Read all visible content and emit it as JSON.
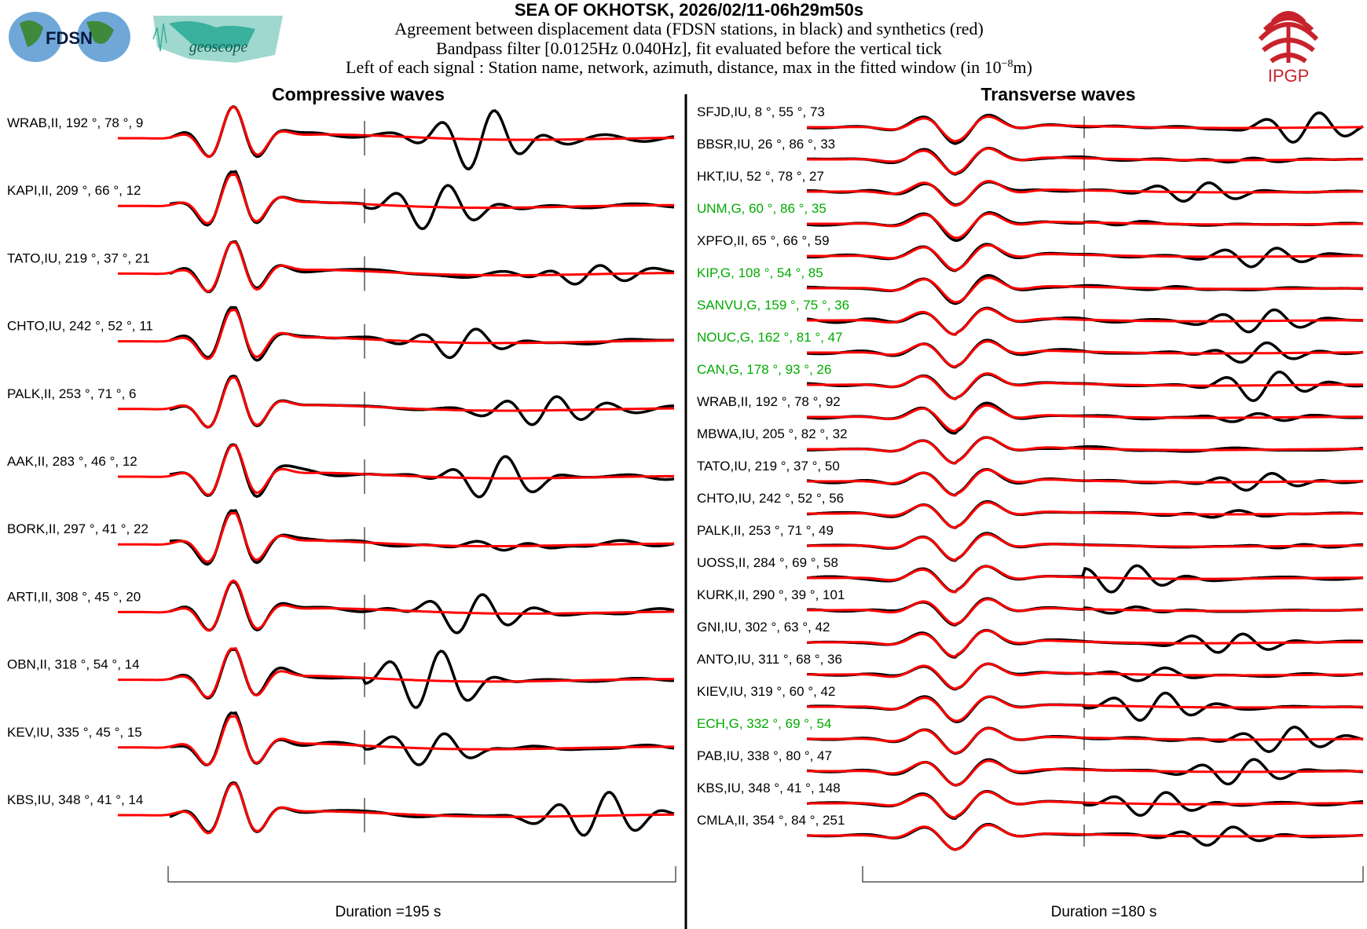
{
  "header": {
    "title": "SEA OF OKHOTSK, 2026/02/11-06h29m50s",
    "line1": "Agreement between displacement data (FDSN stations, in black) and synthetics (red)",
    "line2": "Bandpass filter [0.0125Hz 0.040Hz], fit evaluated before the vertical tick",
    "line3_prefix": "Left of each signal : Station name, network, azimuth, distance, max in the fitted window (in 10",
    "line3_exp": "−8",
    "line3_suffix": "m)",
    "logo_fdsn": "FDSN",
    "logo_geoscope": "geoscope",
    "logo_ipgp": "IPGP"
  },
  "colors": {
    "data": "#000000",
    "synthetic": "#ff0000",
    "geoscope_station": "#00aa00",
    "station": "#000000"
  },
  "chart_data": [
    {
      "type": "line",
      "title": "Compressive waves",
      "duration_label": "Duration =195 s",
      "duration_s": 195,
      "series_legend": [
        "data (black)",
        "synthetics (red)"
      ],
      "stations": [
        {
          "label": "WRAB,II, 192 °, 78 °, 9",
          "geoscope": false
        },
        {
          "label": "KAPI,II, 209 °, 66 °, 12",
          "geoscope": false
        },
        {
          "label": "TATO,IU, 219 °, 37 °, 21",
          "geoscope": false
        },
        {
          "label": "CHTO,IU, 242 °, 52 °, 11",
          "geoscope": false
        },
        {
          "label": "PALK,II, 253 °, 71 °, 6",
          "geoscope": false
        },
        {
          "label": "AAK,II, 283 °, 46 °, 12",
          "geoscope": false
        },
        {
          "label": "BORK,II, 297 °, 41 °, 22",
          "geoscope": false
        },
        {
          "label": "ARTI,II, 308 °, 45 °, 20",
          "geoscope": false
        },
        {
          "label": "OBN,II, 318 °, 54 °, 14",
          "geoscope": false
        },
        {
          "label": "KEV,IU, 335 °, 45 °, 15",
          "geoscope": false
        },
        {
          "label": "KBS,IU, 348 °, 41 °, 14",
          "geoscope": false
        }
      ]
    },
    {
      "type": "line",
      "title": "Transverse waves",
      "duration_label": "Duration =180 s",
      "duration_s": 180,
      "series_legend": [
        "data (black)",
        "synthetics (red)"
      ],
      "stations": [
        {
          "label": "SFJD,IU, 8 °, 55 °, 73",
          "geoscope": false
        },
        {
          "label": "BBSR,IU, 26 °, 86 °, 33",
          "geoscope": false
        },
        {
          "label": "HKT,IU, 52 °, 78 °, 27",
          "geoscope": false
        },
        {
          "label": "UNM,G, 60 °, 86 °, 35",
          "geoscope": true
        },
        {
          "label": "XPFO,II, 65 °, 66 °, 59",
          "geoscope": false
        },
        {
          "label": "KIP,G, 108 °, 54 °, 85",
          "geoscope": true
        },
        {
          "label": "SANVU,G, 159 °, 75 °, 36",
          "geoscope": true
        },
        {
          "label": "NOUC,G, 162 °, 81 °, 47",
          "geoscope": true
        },
        {
          "label": "CAN,G, 178 °, 93 °, 26",
          "geoscope": true
        },
        {
          "label": "WRAB,II, 192 °, 78 °, 92",
          "geoscope": false
        },
        {
          "label": "MBWA,IU, 205 °, 82 °, 32",
          "geoscope": false
        },
        {
          "label": "TATO,IU, 219 °, 37 °, 50",
          "geoscope": false
        },
        {
          "label": "CHTO,IU, 242 °, 52 °, 56",
          "geoscope": false
        },
        {
          "label": "PALK,II, 253 °, 71 °, 49",
          "geoscope": false
        },
        {
          "label": "UOSS,II, 284 °, 69 °, 58",
          "geoscope": false
        },
        {
          "label": "KURK,II, 290 °, 39 °, 101",
          "geoscope": false
        },
        {
          "label": "GNI,IU, 302 °, 63 °, 42",
          "geoscope": false
        },
        {
          "label": "ANTO,IU, 311 °, 68 °, 36",
          "geoscope": false
        },
        {
          "label": "KIEV,IU, 319 °, 60 °, 42",
          "geoscope": false
        },
        {
          "label": "ECH,G, 332 °, 69 °, 54",
          "geoscope": true
        },
        {
          "label": "PAB,IU, 338 °, 80 °, 47",
          "geoscope": false
        },
        {
          "label": "KBS,IU, 348 °, 41 °, 148",
          "geoscope": false
        },
        {
          "label": "CMLA,II, 354 °, 84 °, 251",
          "geoscope": false
        }
      ]
    }
  ]
}
